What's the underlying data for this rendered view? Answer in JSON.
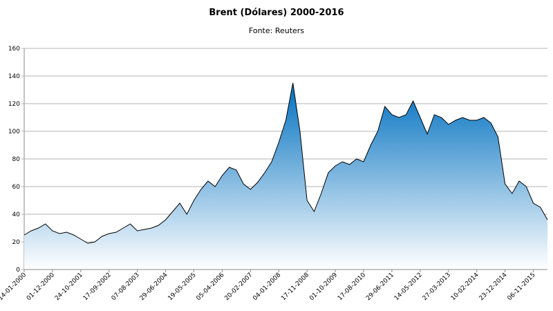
{
  "chart_data": {
    "type": "area",
    "title": "Brent (Dólares) 2000-2016",
    "subtitle": "Fonte: Reuters",
    "categories": [
      "14-01-2000",
      null,
      null,
      null,
      "01-12-2000",
      null,
      null,
      null,
      "24-10-2001",
      null,
      null,
      null,
      "17-09-2002",
      null,
      null,
      null,
      "07-08-2003",
      null,
      null,
      null,
      "29-06-2004",
      null,
      null,
      null,
      "19-05-2005",
      null,
      null,
      null,
      "05-04-2006",
      null,
      null,
      null,
      "20-02-2007",
      null,
      null,
      null,
      "04-01-2008",
      null,
      null,
      null,
      "17-11-2008",
      null,
      null,
      null,
      "01-10-2009",
      null,
      null,
      null,
      "17-08-2010",
      null,
      null,
      null,
      "29-06-2011",
      null,
      null,
      null,
      "14-05-2012",
      null,
      null,
      null,
      "27-03-2013",
      null,
      null,
      null,
      "10-02-2014",
      null,
      null,
      null,
      "23-12-2014",
      null,
      null,
      null,
      "06-11-2015",
      null,
      null
    ],
    "values": [
      25,
      28,
      30,
      33,
      28,
      26,
      27,
      25,
      22,
      19,
      20,
      24,
      26,
      27,
      30,
      33,
      28,
      29,
      30,
      32,
      36,
      42,
      48,
      40,
      50,
      58,
      64,
      60,
      68,
      74,
      72,
      62,
      58,
      63,
      70,
      78,
      92,
      108,
      135,
      100,
      50,
      42,
      55,
      70,
      75,
      78,
      76,
      80,
      78,
      90,
      100,
      118,
      112,
      110,
      112,
      122,
      110,
      98,
      112,
      110,
      105,
      108,
      110,
      108,
      108,
      110,
      106,
      96,
      62,
      55,
      64,
      60,
      48,
      45,
      36
    ],
    "color": "#0070c0",
    "ylim": [
      0,
      160
    ],
    "yticks": [
      0,
      20,
      40,
      60,
      80,
      100,
      120,
      140,
      160
    ],
    "grid": true
  }
}
